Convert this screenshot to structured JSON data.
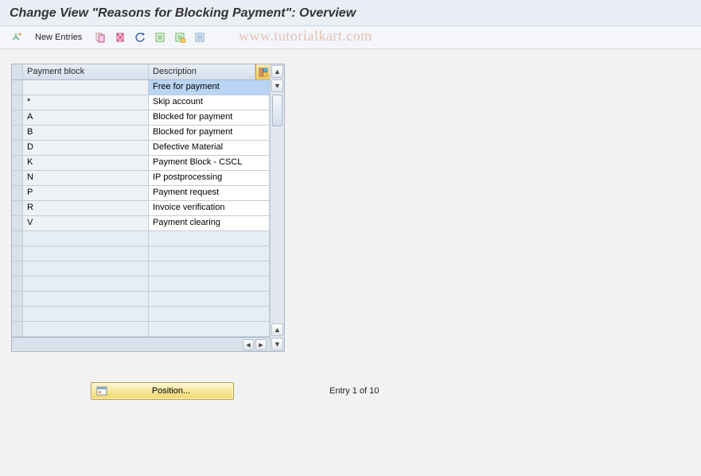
{
  "header": {
    "title": "Change View \"Reasons for Blocking Payment\": Overview"
  },
  "toolbar": {
    "new_entries": "New Entries"
  },
  "watermark": "www.tutorialkart.com",
  "table": {
    "columns": {
      "col1": "Payment block",
      "col2": "Description"
    },
    "rows": [
      {
        "block": "",
        "desc": "Free for payment",
        "selected": true
      },
      {
        "block": "*",
        "desc": "Skip account"
      },
      {
        "block": "A",
        "desc": "Blocked for payment"
      },
      {
        "block": "B",
        "desc": "Blocked for payment"
      },
      {
        "block": "D",
        "desc": "Defective Material"
      },
      {
        "block": "K",
        "desc": "Payment Block - CSCL"
      },
      {
        "block": "N",
        "desc": "IP postprocessing"
      },
      {
        "block": "P",
        "desc": "Payment request"
      },
      {
        "block": "R",
        "desc": "Invoice verification"
      },
      {
        "block": "V",
        "desc": "Payment clearing"
      }
    ],
    "empty_rows": 7
  },
  "footer": {
    "position_label": "Position...",
    "entry_text": "Entry 1 of 10"
  },
  "colors": {
    "header_bg": "#eaeff5",
    "toolbar_bg": "#f4f6fa",
    "table_border": "#a9b7c8",
    "row_alt_bg": "#eef2f7",
    "selected_bg": "#b9d5f3",
    "position_btn_bg": "#f7e79a"
  }
}
